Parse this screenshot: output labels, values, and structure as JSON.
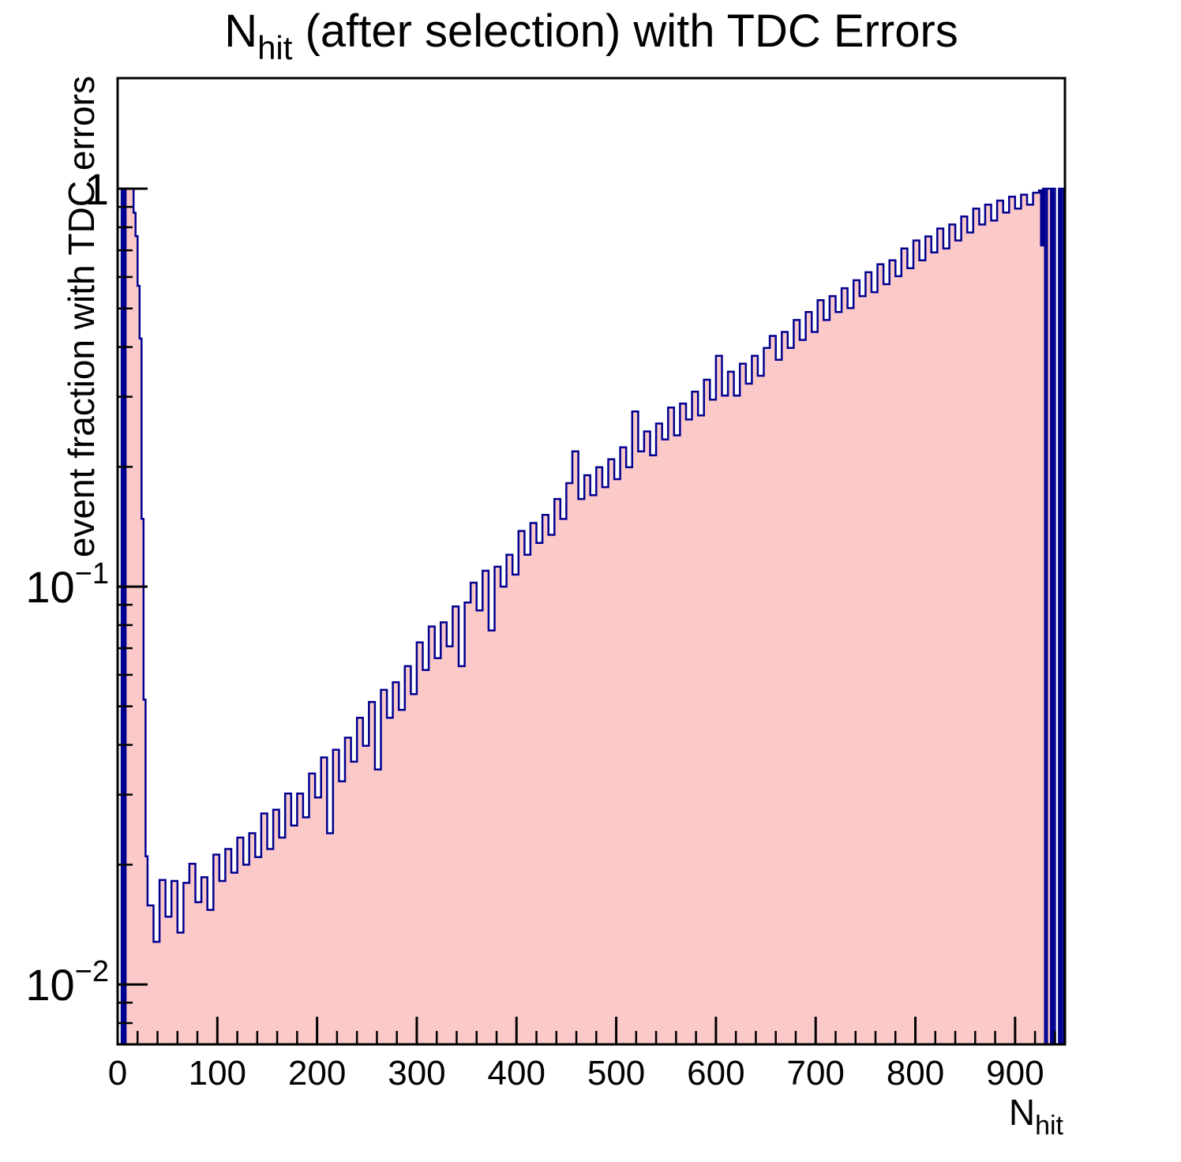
{
  "page": {
    "background_color": "#ffffff"
  },
  "title": {
    "prefix": "N",
    "subscript": "hit",
    "suffix": " (after selection) with TDC Errors"
  },
  "x_axis_title": {
    "prefix": "N",
    "subscript": "hit"
  },
  "y_axis_title": "event fraction with TDC errors",
  "colors": {
    "fill": "#fcc9c9",
    "line": "#000090",
    "axis": "#000000",
    "text": "#000000"
  },
  "chart_data": {
    "type": "area",
    "title": "N_hit (after selection) with TDC Errors",
    "xlabel": "N_hit",
    "ylabel": "event fraction with TDC errors",
    "x_range": [
      0,
      950
    ],
    "y_range": [
      0.00707,
      1.896
    ],
    "y_scale": "log",
    "grid": false,
    "legend": "none",
    "x_major_ticks": [
      {
        "value": 0,
        "label": "0"
      },
      {
        "value": 100,
        "label": "100"
      },
      {
        "value": 200,
        "label": "200"
      },
      {
        "value": 300,
        "label": "300"
      },
      {
        "value": 400,
        "label": "400"
      },
      {
        "value": 500,
        "label": "500"
      },
      {
        "value": 600,
        "label": "600"
      },
      {
        "value": 700,
        "label": "700"
      },
      {
        "value": 800,
        "label": "800"
      },
      {
        "value": 900,
        "label": "900"
      }
    ],
    "x_minor_step": 20,
    "y_major_ticks": [
      {
        "value": 1,
        "base": "1",
        "exp": ""
      },
      {
        "value": 0.1,
        "base": "10",
        "exp": "−1"
      },
      {
        "value": 0.01,
        "base": "10",
        "exp": "−2"
      }
    ],
    "bins": {
      "left_width": 2,
      "left": [
        [
          0,
          0
        ],
        [
          2,
          0
        ],
        [
          4,
          1
        ],
        [
          6,
          0
        ],
        [
          8,
          1
        ],
        [
          10,
          1
        ],
        [
          12,
          1
        ],
        [
          14,
          1
        ],
        [
          16,
          0.87
        ],
        [
          18,
          0.76
        ],
        [
          20,
          0.57
        ],
        [
          22,
          0.42
        ],
        [
          24,
          0.148
        ],
        [
          26,
          0.052
        ],
        [
          28,
          0.021
        ]
      ],
      "main": {
        "start": 30,
        "bin_width": 6,
        "values": [
          0.0158,
          0.0128,
          0.0183,
          0.0148,
          0.0182,
          0.0135,
          0.018,
          0.0201,
          0.0161,
          0.0186,
          0.0154,
          0.0212,
          0.0182,
          0.0219,
          0.0191,
          0.0234,
          0.02,
          0.024,
          0.0209,
          0.0269,
          0.0219,
          0.0275,
          0.0234,
          0.0302,
          0.0251,
          0.0302,
          0.0263,
          0.0339,
          0.0295,
          0.0372,
          0.024,
          0.0389,
          0.0324,
          0.0417,
          0.0363,
          0.0468,
          0.0398,
          0.0513,
          0.0347,
          0.055,
          0.0468,
          0.0575,
          0.049,
          0.0631,
          0.0537,
          0.0724,
          0.0617,
          0.0794,
          0.0661,
          0.0813,
          0.0708,
          0.0891,
          0.0631,
          0.0912,
          0.1023,
          0.0871,
          0.1096,
          0.0776,
          0.1122,
          0.1,
          0.1202,
          0.1072,
          0.138,
          0.1202,
          0.1445,
          0.1288,
          0.1514,
          0.1349,
          0.166,
          0.1479,
          0.182,
          0.2188,
          0.166,
          0.1905,
          0.1698,
          0.1995,
          0.1778,
          0.2089,
          0.1862,
          0.2239,
          0.1995,
          0.2754,
          0.2188,
          0.2455,
          0.2138,
          0.257,
          0.2344,
          0.2818,
          0.2399,
          0.2884,
          0.263,
          0.309,
          0.2692,
          0.3311,
          0.2951,
          0.3802,
          0.302,
          0.3467,
          0.302,
          0.3631,
          0.3236,
          0.3802,
          0.3388,
          0.3981,
          0.4266,
          0.3715,
          0.4365,
          0.3981,
          0.4677,
          0.4169,
          0.4898,
          0.4365,
          0.5248,
          0.4677,
          0.537,
          0.4898,
          0.5623,
          0.5012,
          0.5888,
          0.537,
          0.6166,
          0.5495,
          0.6457,
          0.5754,
          0.6607,
          0.6026,
          0.7079,
          0.631,
          0.7413,
          0.6607,
          0.7586,
          0.6918,
          0.7943,
          0.7079,
          0.8128,
          0.7413,
          0.8511,
          0.7762,
          0.8913,
          0.8128,
          0.912,
          0.8318,
          0.9333,
          0.871,
          0.955,
          0.8913,
          0.9661,
          0.912,
          0.9772
        ]
      },
      "right_width": 2,
      "right": [
        [
          924,
          0.99
        ],
        [
          926,
          0.72
        ],
        [
          928,
          1.0
        ],
        [
          930,
          0
        ],
        [
          932,
          1.0
        ],
        [
          934,
          1.0
        ],
        [
          936,
          0
        ],
        [
          938,
          1.0
        ],
        [
          940,
          0
        ],
        [
          942,
          0
        ],
        [
          944,
          1.0
        ],
        [
          946,
          0
        ],
        [
          948,
          1.0
        ]
      ]
    }
  }
}
